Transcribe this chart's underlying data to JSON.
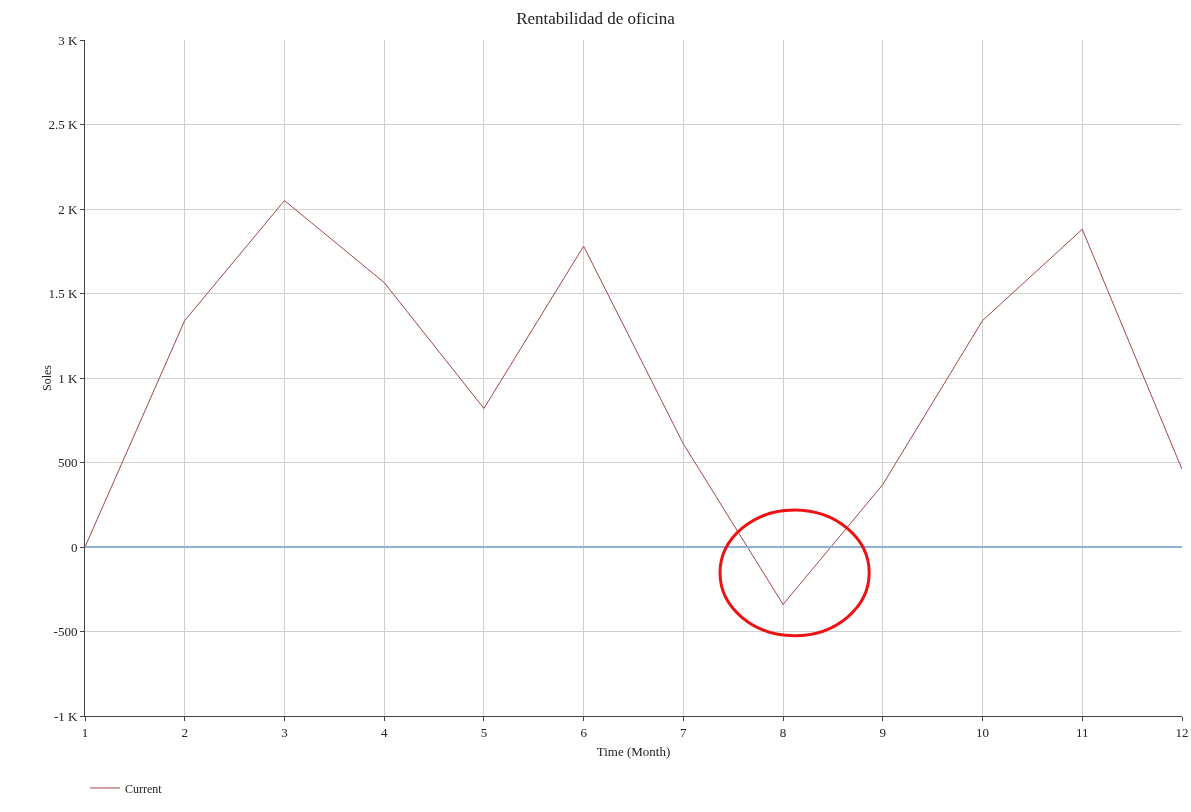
{
  "chart_data": {
    "type": "line",
    "title": "Rentabilidad de oficina",
    "xlabel": "Time (Month)",
    "ylabel": "Soles",
    "x": [
      1,
      2,
      3,
      4,
      5,
      6,
      7,
      8,
      9,
      10,
      11,
      12
    ],
    "series": [
      {
        "name": "Current",
        "color": "#a04848",
        "values": [
          0,
          1340,
          2050,
          1565,
          820,
          1780,
          610,
          -340,
          370,
          1340,
          1880,
          460
        ]
      }
    ],
    "xlim": [
      1,
      12
    ],
    "xticks": [
      1,
      2,
      3,
      4,
      5,
      6,
      7,
      8,
      9,
      10,
      11,
      12
    ],
    "ylim": [
      -1000,
      3000
    ],
    "yticks": [
      {
        "value": -1000,
        "label": "-1 K"
      },
      {
        "value": -500,
        "label": "-500"
      },
      {
        "value": 0,
        "label": "0"
      },
      {
        "value": 500,
        "label": "500"
      },
      {
        "value": 1000,
        "label": "1 K"
      },
      {
        "value": 1500,
        "label": "1.5 K"
      },
      {
        "value": 2000,
        "label": "2 K"
      },
      {
        "value": 2500,
        "label": "2.5 K"
      },
      {
        "value": 3000,
        "label": "3 K"
      }
    ],
    "ref_lines": [
      {
        "axis": "y",
        "value": 0,
        "color": "#8fb0d6"
      }
    ],
    "grid": true,
    "legend": "bottom left",
    "marker": "none",
    "line_style": "solid"
  }
}
